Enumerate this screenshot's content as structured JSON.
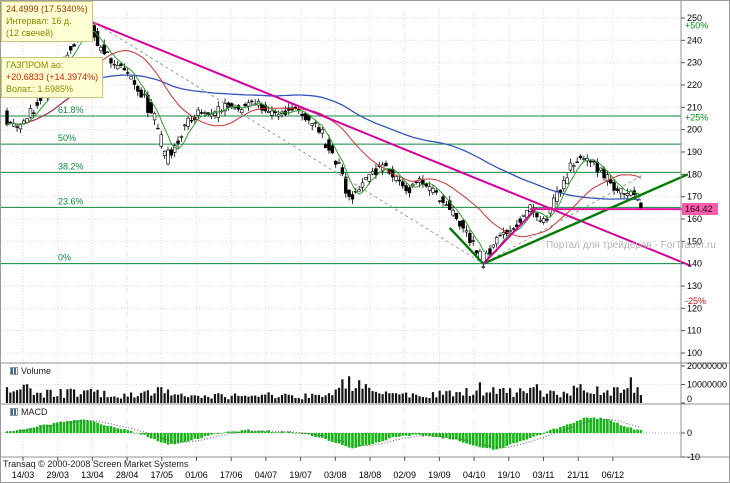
{
  "meta": {
    "footer": "Transaq © 2000-2008 Screen Market Systems",
    "watermark": "Портал для трейдеров - ForTrader.ru"
  },
  "tooltips": {
    "measure": {
      "line1": "24.4999 (17.5340%)",
      "line2": "Интервал: 16 д.",
      "line3": "(12 свечей)"
    },
    "instrument": {
      "name": "ГАЗПРОМ ао:",
      "change": "+20.6833 (+14.3974%)",
      "volatility": "Волат.: 1.6985%"
    }
  },
  "panel_labels": {
    "volume": "Volume",
    "macd": "MACD"
  },
  "price_marker": {
    "value": "164.42"
  },
  "chart_data": {
    "type": "candlestick",
    "instrument": "ГАЗПРОМ ао",
    "last_price": 164.42,
    "x_labels": [
      "14/03",
      "29/03",
      "13/04",
      "28/04",
      "17/05",
      "01/06",
      "17/06",
      "04/07",
      "19/07",
      "03/08",
      "18/08",
      "02/09",
      "19/09",
      "04/10",
      "19/10",
      "03/11",
      "21/11",
      "06/12"
    ],
    "y_axis": {
      "min": 100,
      "max": 250,
      "step": 10
    },
    "volume_axis": {
      "ticks": [
        {
          "value": 20000000,
          "label": "20000000"
        },
        {
          "value": 10000000,
          "label": "10000000"
        },
        {
          "value": 0,
          "label": "0"
        }
      ]
    },
    "macd_axis": {
      "ticks": [
        {
          "value": 0,
          "label": "0"
        },
        {
          "value": -10,
          "label": "-10"
        }
      ]
    },
    "fibonacci_levels": [
      {
        "label": "61.8%",
        "price": 206.1
      },
      {
        "label": "50%",
        "price": 193.5
      },
      {
        "label": "38.2%",
        "price": 180.9
      },
      {
        "label": "23.6%",
        "price": 165.2
      },
      {
        "label": "0%",
        "price": 140.0
      }
    ],
    "percent_levels": [
      {
        "label": "+50%",
        "price": 246.6,
        "color": "#089018"
      },
      {
        "label": "+25%",
        "price": 205.5,
        "color": "#089018"
      },
      {
        "label": "-25%",
        "price": 123.3,
        "color": "#cc1111"
      }
    ],
    "sessions": 190,
    "price_path": [
      [
        0,
        206
      ],
      [
        3,
        199
      ],
      [
        6,
        204
      ],
      [
        10,
        212
      ],
      [
        14,
        222
      ],
      [
        18,
        234
      ],
      [
        22,
        243
      ],
      [
        25,
        247
      ],
      [
        28,
        238
      ],
      [
        31,
        231
      ],
      [
        34,
        228
      ],
      [
        38,
        221
      ],
      [
        42,
        214
      ],
      [
        45,
        201
      ],
      [
        48,
        187
      ],
      [
        51,
        194
      ],
      [
        54,
        203
      ],
      [
        58,
        208
      ],
      [
        62,
        206
      ],
      [
        66,
        212
      ],
      [
        70,
        209
      ],
      [
        74,
        213
      ],
      [
        78,
        208
      ],
      [
        82,
        206
      ],
      [
        86,
        210
      ],
      [
        90,
        205
      ],
      [
        94,
        199
      ],
      [
        98,
        188
      ],
      [
        101,
        178
      ],
      [
        103,
        169
      ],
      [
        106,
        175
      ],
      [
        110,
        181
      ],
      [
        113,
        184
      ],
      [
        116,
        178
      ],
      [
        120,
        173
      ],
      [
        124,
        177
      ],
      [
        128,
        171
      ],
      [
        132,
        166
      ],
      [
        136,
        158
      ],
      [
        139,
        151
      ],
      [
        142,
        140
      ],
      [
        145,
        148
      ],
      [
        148,
        152
      ],
      [
        152,
        157
      ],
      [
        156,
        165
      ],
      [
        158,
        161
      ],
      [
        161,
        159
      ],
      [
        164,
        168
      ],
      [
        168,
        182
      ],
      [
        171,
        188
      ],
      [
        175,
        185
      ],
      [
        179,
        179
      ],
      [
        182,
        174
      ],
      [
        185,
        170
      ],
      [
        187,
        173
      ],
      [
        189,
        167
      ]
    ],
    "volume_path_millions": [
      [
        0,
        9
      ],
      [
        3,
        7
      ],
      [
        6,
        10
      ],
      [
        10,
        5
      ],
      [
        14,
        5
      ],
      [
        20,
        6
      ],
      [
        26,
        5
      ],
      [
        32,
        4
      ],
      [
        40,
        4
      ],
      [
        46,
        7
      ],
      [
        52,
        4
      ],
      [
        60,
        4
      ],
      [
        68,
        4
      ],
      [
        76,
        4
      ],
      [
        84,
        3.5
      ],
      [
        92,
        4
      ],
      [
        98,
        7
      ],
      [
        103,
        12
      ],
      [
        108,
        6
      ],
      [
        114,
        5
      ],
      [
        120,
        4
      ],
      [
        126,
        4
      ],
      [
        132,
        5
      ],
      [
        138,
        6
      ],
      [
        142,
        8
      ],
      [
        147,
        6
      ],
      [
        152,
        5
      ],
      [
        158,
        7
      ],
      [
        164,
        5
      ],
      [
        170,
        7
      ],
      [
        176,
        6
      ],
      [
        180,
        5
      ],
      [
        184,
        8
      ],
      [
        187,
        11
      ],
      [
        189,
        6
      ]
    ],
    "macd_path": [
      [
        0,
        0.5
      ],
      [
        6,
        2
      ],
      [
        12,
        3.5
      ],
      [
        18,
        5
      ],
      [
        24,
        5.5
      ],
      [
        30,
        3
      ],
      [
        36,
        1
      ],
      [
        42,
        -1.5
      ],
      [
        48,
        -5
      ],
      [
        54,
        -3.5
      ],
      [
        60,
        -1
      ],
      [
        66,
        0.5
      ],
      [
        72,
        1.2
      ],
      [
        78,
        0.8
      ],
      [
        84,
        0.3
      ],
      [
        90,
        -0.5
      ],
      [
        96,
        -3
      ],
      [
        103,
        -6.5
      ],
      [
        110,
        -4
      ],
      [
        116,
        -1.5
      ],
      [
        122,
        -0.8
      ],
      [
        128,
        -1.5
      ],
      [
        134,
        -3
      ],
      [
        140,
        -5.5
      ],
      [
        146,
        -7
      ],
      [
        150,
        -5
      ],
      [
        156,
        -2
      ],
      [
        162,
        1
      ],
      [
        168,
        4
      ],
      [
        173,
        6.5
      ],
      [
        178,
        6
      ],
      [
        182,
        4
      ],
      [
        186,
        2
      ],
      [
        189,
        1
      ]
    ],
    "trend_lines": [
      {
        "name": "downtrend-line",
        "color": "#d4009e",
        "width": 2,
        "points": [
          [
            24,
            249
          ],
          [
            204,
            139
          ]
        ]
      },
      {
        "name": "dashed-channel",
        "color": "#9a9a9a",
        "width": 1,
        "dash": "3,3",
        "points": [
          [
            26,
            248
          ],
          [
            142,
            140
          ],
          [
            190,
            180
          ]
        ]
      },
      {
        "name": "pullback-line",
        "color": "#007a00",
        "width": 2.4,
        "points": [
          [
            132,
            156
          ],
          [
            142,
            140
          ]
        ]
      },
      {
        "name": "uptrend-line",
        "color": "#007a00",
        "width": 2.4,
        "points": [
          [
            142,
            140
          ],
          [
            203,
            180
          ]
        ]
      },
      {
        "name": "projection-line",
        "color": "#d4009e",
        "width": 2,
        "points": [
          [
            142,
            140
          ],
          [
            158,
            165
          ]
        ]
      },
      {
        "name": "current-price-line",
        "color": "#e8189e",
        "width": 2,
        "points": [
          [
            156,
            164.42
          ],
          [
            202,
            164.42
          ]
        ]
      }
    ],
    "ma_colors": {
      "short": "#2e9e2e",
      "mid": "#cc3333",
      "long": "#3355bb"
    }
  }
}
